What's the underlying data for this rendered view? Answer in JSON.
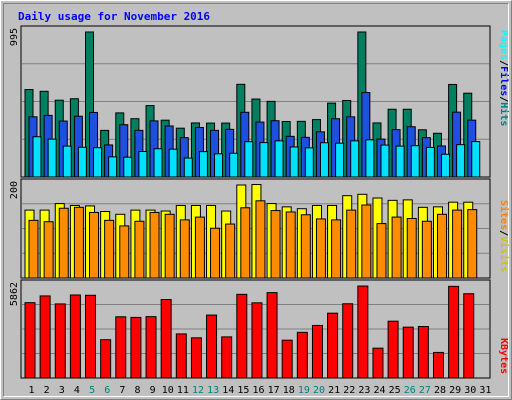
{
  "chart_data": [
    {
      "type": "bar",
      "title": "Daily usage for November 2016",
      "categories": [
        "1",
        "2",
        "3",
        "4",
        "5",
        "6",
        "7",
        "8",
        "9",
        "10",
        "11",
        "12",
        "13",
        "14",
        "15",
        "16",
        "17",
        "18",
        "19",
        "20",
        "21",
        "22",
        "23",
        "24",
        "25",
        "26",
        "27",
        "28",
        "29",
        "30",
        "31"
      ],
      "weekend_days": [
        "5",
        "6",
        "12",
        "13",
        "19",
        "20",
        "26",
        "27"
      ],
      "y_label_max": "995",
      "ylim": [
        0,
        995
      ],
      "legend": [
        {
          "text": "Hits",
          "color": "#008080"
        },
        {
          "text": "Files",
          "color": "#0000ff"
        },
        {
          "text": "Pages",
          "color": "#00ffff"
        }
      ],
      "separator": "/",
      "series": [
        {
          "name": "Hits",
          "color": "#008060",
          "values": [
            600,
            588,
            527,
            537,
            995,
            320,
            440,
            400,
            490,
            390,
            335,
            371,
            370,
            370,
            636,
            535,
            519,
            381,
            382,
            394,
            507,
            525,
            995,
            371,
            465,
            465,
            324,
            300,
            635,
            575,
            0
          ]
        },
        {
          "name": "Files",
          "color": "#1e50e0",
          "values": [
            413,
            423,
            384,
            417,
            443,
            220,
            359,
            320,
            385,
            350,
            270,
            340,
            320,
            327,
            444,
            377,
            386,
            279,
            272,
            310,
            400,
            413,
            580,
            260,
            325,
            345,
            270,
            213,
            445,
            390,
            0
          ]
        },
        {
          "name": "Pages",
          "color": "#00e0ff",
          "values": [
            276,
            260,
            212,
            204,
            201,
            138,
            136,
            175,
            194,
            191,
            130,
            174,
            159,
            163,
            242,
            236,
            248,
            206,
            200,
            235,
            232,
            248,
            255,
            219,
            212,
            215,
            203,
            156,
            222,
            243,
            0
          ]
        }
      ]
    },
    {
      "type": "bar",
      "categories": [
        "1",
        "2",
        "3",
        "4",
        "5",
        "6",
        "7",
        "8",
        "9",
        "10",
        "11",
        "12",
        "13",
        "14",
        "15",
        "16",
        "17",
        "18",
        "19",
        "20",
        "21",
        "22",
        "23",
        "24",
        "25",
        "26",
        "27",
        "28",
        "29",
        "30",
        "31"
      ],
      "y_label_max": "200",
      "ylim": [
        0,
        200
      ],
      "legend": [
        {
          "text": "Visits",
          "color": "#c8c800"
        },
        {
          "text": "Sites",
          "color": "#ff8000"
        }
      ],
      "separator": "/",
      "series": [
        {
          "name": "Visits",
          "color": "#ffff00",
          "values": [
            146,
            146,
            160,
            156,
            155,
            143,
            137,
            146,
            146,
            144,
            156,
            156,
            156,
            144,
            200,
            201,
            160,
            153,
            149,
            156,
            156,
            177,
            180,
            172,
            167,
            168,
            152,
            153,
            163,
            163,
            0
          ]
        },
        {
          "name": "Sites",
          "color": "#ff8c00",
          "values": [
            124,
            121,
            150,
            152,
            141,
            124,
            112,
            122,
            141,
            137,
            125,
            131,
            107,
            116,
            151,
            166,
            145,
            142,
            136,
            127,
            125,
            146,
            157,
            117,
            131,
            128,
            122,
            137,
            146,
            147,
            0
          ]
        }
      ]
    },
    {
      "type": "bar",
      "categories": [
        "1",
        "2",
        "3",
        "4",
        "5",
        "6",
        "7",
        "8",
        "9",
        "10",
        "11",
        "12",
        "13",
        "14",
        "15",
        "16",
        "17",
        "18",
        "19",
        "20",
        "21",
        "22",
        "23",
        "24",
        "25",
        "26",
        "27",
        "28",
        "29",
        "30",
        "31"
      ],
      "y_label_max": "5862",
      "ylim": [
        0,
        5862
      ],
      "legend": [
        {
          "text": "KBytes",
          "color": "#ff0000"
        }
      ],
      "series": [
        {
          "name": "KBytes",
          "color": "#ff0000",
          "values": [
            4800,
            5230,
            4720,
            5290,
            5270,
            2440,
            3900,
            3860,
            3910,
            5000,
            2810,
            2560,
            4010,
            2620,
            5330,
            4790,
            5440,
            2410,
            2910,
            3350,
            4130,
            4730,
            5860,
            1900,
            3620,
            3240,
            3280,
            1630,
            5840,
            5370,
            0
          ]
        }
      ]
    }
  ]
}
